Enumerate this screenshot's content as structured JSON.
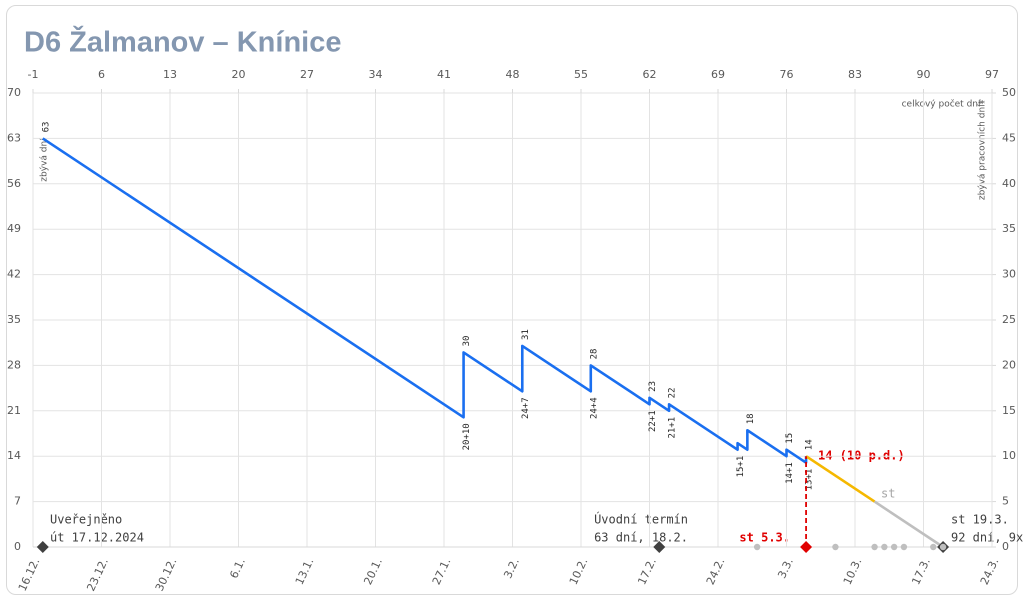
{
  "chart_data": {
    "type": "line",
    "title": "D6 Žalmanov – Knínice",
    "ylabel": "zbývá dní",
    "y2label": "zbývá pracovních dní*",
    "x2label": "celkový počet dní*",
    "xlim": [
      -1,
      97
    ],
    "xticks": [
      {
        "value": -1,
        "label": "16.12."
      },
      {
        "value": 6,
        "label": "23.12."
      },
      {
        "value": 13,
        "label": "30.12."
      },
      {
        "value": 20,
        "label": "6.1."
      },
      {
        "value": 27,
        "label": "13.1."
      },
      {
        "value": 34,
        "label": "20.1."
      },
      {
        "value": 41,
        "label": "27.1."
      },
      {
        "value": 48,
        "label": "3.2."
      },
      {
        "value": 55,
        "label": "10.2."
      },
      {
        "value": 62,
        "label": "17.2."
      },
      {
        "value": 69,
        "label": "24.2."
      },
      {
        "value": 76,
        "label": "3.3."
      },
      {
        "value": 83,
        "label": "10.3."
      },
      {
        "value": 90,
        "label": "17.3."
      },
      {
        "value": 97,
        "label": "24.3."
      }
    ],
    "x2ticks": [
      -1,
      6,
      13,
      20,
      27,
      34,
      41,
      48,
      55,
      62,
      69,
      76,
      83,
      90,
      97
    ],
    "ylim": [
      0,
      70
    ],
    "yticks": [
      0,
      7,
      14,
      21,
      28,
      35,
      42,
      49,
      56,
      63,
      70
    ],
    "y2lim": [
      0,
      50
    ],
    "y2ticks": [
      0,
      5,
      10,
      15,
      20,
      25,
      30,
      35,
      40,
      45,
      50
    ],
    "grid": true,
    "series": [
      {
        "color": "#1a6ff0",
        "x": [
          0,
          43,
          43,
          49,
          49,
          56,
          56,
          62,
          62,
          64,
          64,
          71,
          71,
          72,
          72,
          76,
          76,
          78,
          78
        ],
        "values": [
          63,
          20,
          30,
          24,
          31,
          24,
          28,
          22,
          23,
          21,
          22,
          15,
          16,
          15,
          18,
          14,
          15,
          13,
          14
        ],
        "value_labels": [
          "63",
          "20+10",
          "30",
          "24+7",
          "31",
          "24+4",
          "28",
          "22+1",
          "23",
          "21+1",
          "22",
          "15+1",
          null,
          null,
          "18",
          "14+1",
          "15",
          "13+1",
          "14"
        ]
      },
      {
        "color": "#f5b800",
        "x": [
          78,
          85
        ],
        "values": [
          14,
          7
        ]
      },
      {
        "color": "#bfbfbf",
        "x": [
          85,
          92
        ],
        "values": [
          7,
          0
        ]
      },
      {
        "color": "#e00000",
        "x": [
          78,
          78
        ],
        "values": [
          0,
          14
        ],
        "dash": true
      },
      {
        "color": "#404040",
        "x": [
          0,
          63,
          92
        ],
        "values": [
          0,
          0,
          0
        ],
        "marker": "diamond"
      },
      {
        "color": "#e00000",
        "x": [
          78
        ],
        "values": [
          0
        ],
        "marker": "diamond"
      },
      {
        "color": "#bfbfbf",
        "x": [
          73,
          81,
          85,
          86,
          87,
          88,
          91,
          92
        ],
        "values": [
          0,
          0,
          0,
          0,
          0,
          0,
          0,
          0
        ],
        "marker": "dot"
      }
    ],
    "annotations": [
      "Uveřejněno",
      "út 17.12.2024",
      "Úvodní termín",
      "63 dní, 18.2.",
      "st 5.3.",
      "st 19.3.",
      "92 dní, 9x",
      "14 (10 p.d.)",
      "st"
    ]
  }
}
